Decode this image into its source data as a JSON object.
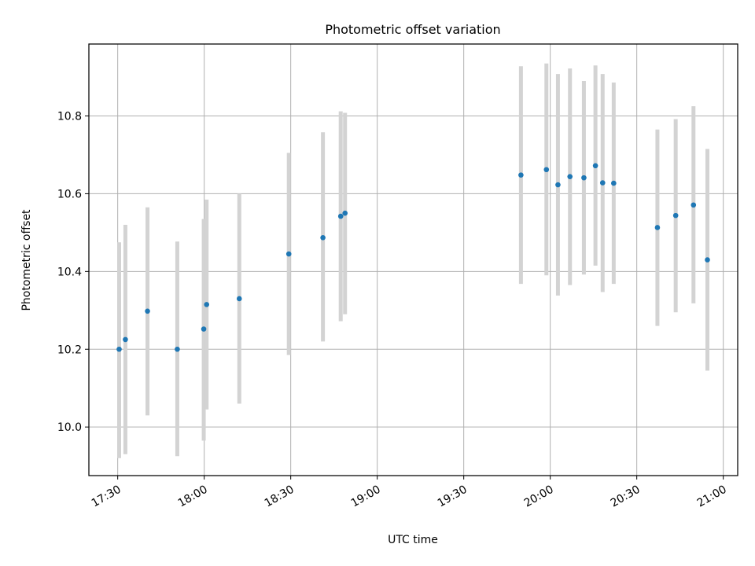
{
  "chart_data": {
    "type": "scatter",
    "title": "Photometric offset variation",
    "xlabel": "UTC time",
    "ylabel": "Photometric offset",
    "x_ticks": [
      "17:30",
      "18:00",
      "18:30",
      "19:00",
      "19:30",
      "20:00",
      "20:30",
      "21:00"
    ],
    "y_ticks": [
      "10.0",
      "10.2",
      "10.4",
      "10.6",
      "10.8"
    ],
    "xlim": [
      "17:20",
      "21:05"
    ],
    "ylim": [
      9.875,
      10.985
    ],
    "grid": true,
    "colors": {
      "point": "#1f77b4",
      "errorbar": "#d3d3d3",
      "grid": "#b0b0b0"
    },
    "points": [
      {
        "t": "17:30:30",
        "y": 10.2,
        "lo": 9.92,
        "hi": 10.475
      },
      {
        "t": "17:32:40",
        "y": 10.225,
        "lo": 9.93,
        "hi": 10.52
      },
      {
        "t": "17:40:20",
        "y": 10.298,
        "lo": 10.03,
        "hi": 10.565
      },
      {
        "t": "17:50:40",
        "y": 10.2,
        "lo": 9.925,
        "hi": 10.477
      },
      {
        "t": "17:59:50",
        "y": 10.252,
        "lo": 9.965,
        "hi": 10.535
      },
      {
        "t": "18:00:50",
        "y": 10.315,
        "lo": 10.045,
        "hi": 10.585
      },
      {
        "t": "18:12:10",
        "y": 10.33,
        "lo": 10.06,
        "hi": 10.6
      },
      {
        "t": "18:29:20",
        "y": 10.445,
        "lo": 10.185,
        "hi": 10.705
      },
      {
        "t": "18:41:10",
        "y": 10.487,
        "lo": 10.22,
        "hi": 10.758
      },
      {
        "t": "18:47:20",
        "y": 10.542,
        "lo": 10.272,
        "hi": 10.812
      },
      {
        "t": "18:48:50",
        "y": 10.55,
        "lo": 10.29,
        "hi": 10.808
      },
      {
        "t": "19:49:50",
        "y": 10.648,
        "lo": 10.368,
        "hi": 10.928
      },
      {
        "t": "19:58:40",
        "y": 10.662,
        "lo": 10.39,
        "hi": 10.935
      },
      {
        "t": "20:02:40",
        "y": 10.623,
        "lo": 10.338,
        "hi": 10.908
      },
      {
        "t": "20:06:50",
        "y": 10.644,
        "lo": 10.365,
        "hi": 10.922
      },
      {
        "t": "20:11:40",
        "y": 10.641,
        "lo": 10.392,
        "hi": 10.89
      },
      {
        "t": "20:15:40",
        "y": 10.672,
        "lo": 10.415,
        "hi": 10.93
      },
      {
        "t": "20:18:10",
        "y": 10.628,
        "lo": 10.347,
        "hi": 10.908
      },
      {
        "t": "20:22:00",
        "y": 10.627,
        "lo": 10.368,
        "hi": 10.886
      },
      {
        "t": "20:37:10",
        "y": 10.513,
        "lo": 10.26,
        "hi": 10.765
      },
      {
        "t": "20:43:30",
        "y": 10.544,
        "lo": 10.295,
        "hi": 10.792
      },
      {
        "t": "20:49:40",
        "y": 10.571,
        "lo": 10.318,
        "hi": 10.825
      },
      {
        "t": "20:54:30",
        "y": 10.43,
        "lo": 10.145,
        "hi": 10.715
      }
    ]
  }
}
